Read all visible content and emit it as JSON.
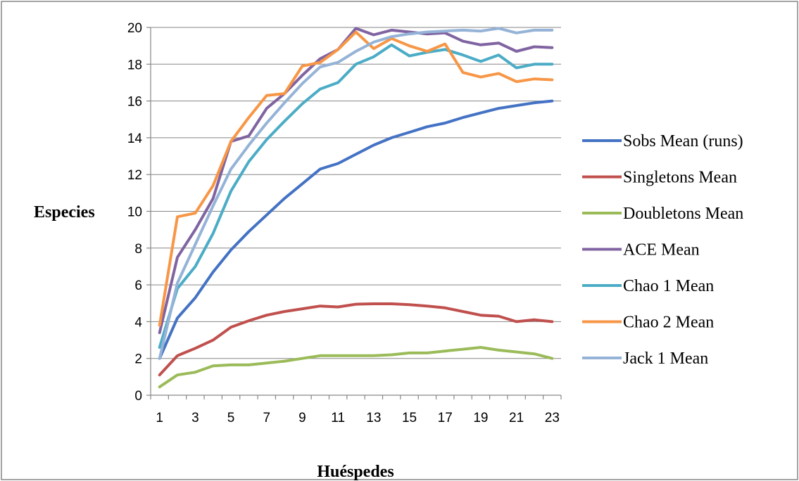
{
  "chart_data": {
    "type": "line",
    "title": "",
    "xlabel": "Huéspedes",
    "ylabel": "Especies",
    "x": [
      1,
      2,
      3,
      4,
      5,
      6,
      7,
      8,
      9,
      10,
      11,
      12,
      13,
      14,
      15,
      16,
      17,
      18,
      19,
      20,
      21,
      22,
      23
    ],
    "x_tick_labels": [
      "1",
      "3",
      "5",
      "7",
      "9",
      "11",
      "13",
      "15",
      "17",
      "19",
      "21",
      "23"
    ],
    "y_tick_labels": [
      "0",
      "2",
      "4",
      "6",
      "8",
      "10",
      "12",
      "14",
      "16",
      "18",
      "20"
    ],
    "ylim": [
      0,
      20
    ],
    "grid": "horizontal",
    "legend_position": "right",
    "series": [
      {
        "name": "Sobs Mean (runs)",
        "color": "#4472c4",
        "values": [
          2.0,
          4.2,
          5.3,
          6.7,
          7.9,
          8.9,
          9.8,
          10.7,
          11.5,
          12.3,
          12.6,
          13.1,
          13.6,
          14.0,
          14.3,
          14.6,
          14.8,
          15.1,
          15.35,
          15.6,
          15.75,
          15.9,
          16.0
        ]
      },
      {
        "name": "Singletons Mean",
        "color": "#c0504d",
        "values": [
          1.1,
          2.15,
          2.55,
          3.0,
          3.7,
          4.05,
          4.35,
          4.55,
          4.7,
          4.85,
          4.8,
          4.95,
          4.97,
          4.97,
          4.92,
          4.85,
          4.75,
          4.55,
          4.35,
          4.3,
          4.0,
          4.1,
          4.0
        ]
      },
      {
        "name": "Doubletons Mean",
        "color": "#9bbb59",
        "values": [
          0.45,
          1.1,
          1.25,
          1.6,
          1.65,
          1.65,
          1.75,
          1.85,
          2.0,
          2.15,
          2.15,
          2.15,
          2.15,
          2.2,
          2.3,
          2.3,
          2.4,
          2.5,
          2.6,
          2.45,
          2.35,
          2.25,
          2.0
        ]
      },
      {
        "name": "ACE Mean",
        "color": "#8064a2",
        "values": [
          3.4,
          7.5,
          9.0,
          10.7,
          13.8,
          14.1,
          15.6,
          16.4,
          17.4,
          18.3,
          18.8,
          19.95,
          19.6,
          19.85,
          19.75,
          19.65,
          19.7,
          19.25,
          19.05,
          19.15,
          18.7,
          18.95,
          18.9
        ]
      },
      {
        "name": "Chao 1 Mean",
        "color": "#4bacc6",
        "values": [
          2.6,
          5.8,
          7.0,
          8.8,
          11.1,
          12.7,
          13.9,
          14.9,
          15.85,
          16.65,
          17.0,
          18.0,
          18.4,
          19.05,
          18.45,
          18.65,
          18.8,
          18.5,
          18.15,
          18.5,
          17.8,
          18.0,
          18.0
        ]
      },
      {
        "name": "Chao 2 Mean",
        "color": "#f79646",
        "values": [
          3.8,
          9.7,
          9.9,
          11.4,
          13.8,
          15.1,
          16.3,
          16.4,
          17.9,
          18.1,
          18.8,
          19.75,
          18.85,
          19.4,
          19.0,
          18.7,
          19.1,
          17.55,
          17.3,
          17.5,
          17.05,
          17.2,
          17.15
        ]
      },
      {
        "name": "Jack 1 Mean",
        "color": "#95b3d7",
        "values": [
          2.0,
          6.1,
          8.2,
          10.3,
          12.3,
          13.6,
          14.8,
          15.9,
          16.95,
          17.85,
          18.1,
          18.7,
          19.2,
          19.5,
          19.65,
          19.75,
          19.8,
          19.85,
          19.8,
          19.95,
          19.7,
          19.85,
          19.85
        ]
      }
    ]
  }
}
